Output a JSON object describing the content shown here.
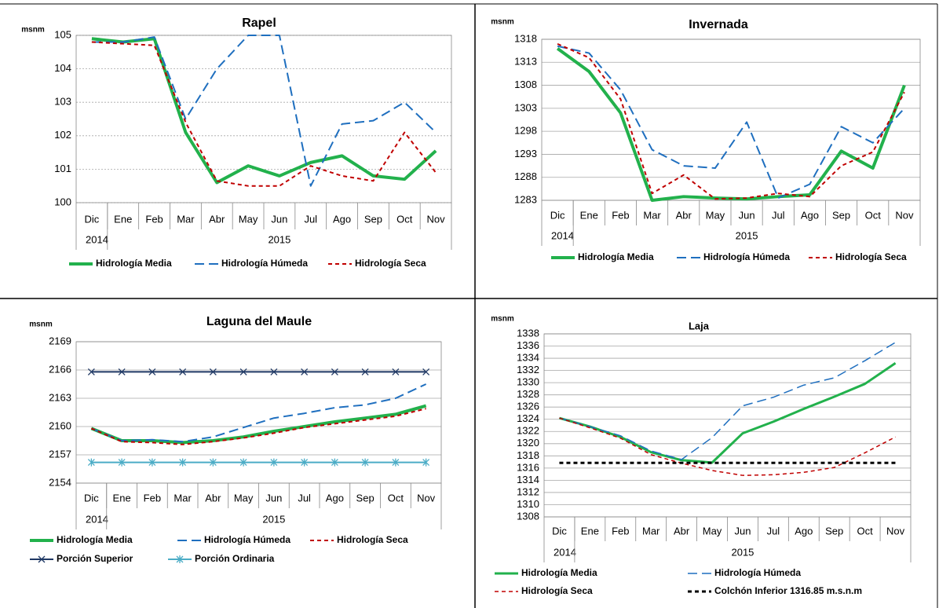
{
  "chart_data": [
    {
      "type": "line",
      "title": "Rapel",
      "y_label": "msnm",
      "categories": [
        "Dic",
        "Ene",
        "Feb",
        "Mar",
        "Abr",
        "May",
        "Jun",
        "Jul",
        "Ago",
        "Sep",
        "Oct",
        "Nov"
      ],
      "x_groups": [
        {
          "label": "2014",
          "count": 1
        },
        {
          "label": "2015",
          "count": 11
        }
      ],
      "ylim": [
        100,
        105
      ],
      "yticks": [
        100,
        101,
        102,
        103,
        104,
        105
      ],
      "grid": true,
      "grid_dash": true,
      "series": [
        {
          "name": "Hidrología Media",
          "color": "#22b14c",
          "dash": "solid",
          "width": 4,
          "values": [
            104.9,
            104.8,
            104.9,
            102.1,
            100.6,
            101.1,
            100.8,
            101.2,
            101.4,
            100.8,
            100.7,
            101.55
          ]
        },
        {
          "name": "Hidrología Húmeda",
          "color": "#1f6fbf",
          "dash": "long",
          "width": 2,
          "values": [
            104.8,
            104.8,
            104.95,
            102.5,
            104.0,
            105.0,
            105.0,
            100.5,
            102.35,
            102.45,
            103.0,
            102.1
          ]
        },
        {
          "name": "Hidrología Seca",
          "color": "#c00000",
          "dash": "short",
          "width": 2,
          "values": [
            104.8,
            104.75,
            104.7,
            102.4,
            100.65,
            100.5,
            100.5,
            101.1,
            100.8,
            100.65,
            102.1,
            100.9
          ]
        }
      ]
    },
    {
      "type": "line",
      "title": "Invernada",
      "y_label": "msnm",
      "categories": [
        "Dic",
        "Ene",
        "Feb",
        "Mar",
        "Abr",
        "May",
        "Jun",
        "Jul",
        "Ago",
        "Sep",
        "Oct",
        "Nov"
      ],
      "x_groups": [
        {
          "label": "2014",
          "count": 1
        },
        {
          "label": "2015",
          "count": 11
        }
      ],
      "ylim": [
        1283,
        1318
      ],
      "yticks": [
        1283,
        1288,
        1293,
        1298,
        1303,
        1308,
        1313,
        1318
      ],
      "grid": true,
      "grid_dash": false,
      "series": [
        {
          "name": "Hidrología Media",
          "color": "#22b14c",
          "dash": "solid",
          "width": 4,
          "values": [
            1316,
            1311,
            1302,
            1283,
            1283.8,
            1283.5,
            1283.3,
            1283.8,
            1284.2,
            1293.7,
            1290,
            1308
          ]
        },
        {
          "name": "Hidrología Húmeda",
          "color": "#1f6fbf",
          "dash": "long",
          "width": 2,
          "values": [
            1316.5,
            1315,
            1307,
            1294,
            1290.5,
            1290,
            1300,
            1283.5,
            1286.5,
            1299,
            1295.5,
            1303
          ]
        },
        {
          "name": "Hidrología Seca",
          "color": "#c00000",
          "dash": "short",
          "width": 2,
          "values": [
            1317,
            1314,
            1305,
            1284.5,
            1288.5,
            1283.3,
            1283.5,
            1284.5,
            1283.8,
            1290.5,
            1293.5,
            1306.5
          ]
        }
      ]
    },
    {
      "type": "line",
      "title": "Laguna del Maule",
      "y_label": "msnm",
      "categories": [
        "Dic",
        "Ene",
        "Feb",
        "Mar",
        "Abr",
        "May",
        "Jun",
        "Jul",
        "Ago",
        "Sep",
        "Oct",
        "Nov"
      ],
      "x_groups": [
        {
          "label": "2014",
          "count": 1
        },
        {
          "label": "2015",
          "count": 11
        }
      ],
      "ylim": [
        2154,
        2169
      ],
      "yticks": [
        2154,
        2157,
        2160,
        2163,
        2166,
        2169
      ],
      "grid": true,
      "grid_dash": false,
      "series": [
        {
          "name": "Hidrología Media",
          "color": "#22b14c",
          "dash": "solid",
          "width": 4,
          "values": [
            2159.8,
            2158.5,
            2158.5,
            2158.3,
            2158.5,
            2158.9,
            2159.5,
            2160.0,
            2160.5,
            2160.9,
            2161.3,
            2162.2
          ]
        },
        {
          "name": "Hidrología Húmeda",
          "color": "#1f6fbf",
          "dash": "long",
          "width": 2,
          "values": [
            2159.8,
            2158.5,
            2158.6,
            2158.4,
            2158.9,
            2159.9,
            2160.9,
            2161.4,
            2162.0,
            2162.3,
            2163.0,
            2164.5
          ]
        },
        {
          "name": "Hidrología Seca",
          "color": "#c00000",
          "dash": "short",
          "width": 2,
          "values": [
            2159.8,
            2158.4,
            2158.3,
            2158.1,
            2158.4,
            2158.8,
            2159.3,
            2159.9,
            2160.3,
            2160.7,
            2161.1,
            2161.9
          ]
        },
        {
          "name": "Porción Superior",
          "color": "#1f3864",
          "dash": "solid",
          "width": 2,
          "marker": "x",
          "values": [
            2165.8,
            2165.8,
            2165.8,
            2165.8,
            2165.8,
            2165.8,
            2165.8,
            2165.8,
            2165.8,
            2165.8,
            2165.8,
            2165.8
          ]
        },
        {
          "name": "Porción Ordinaria",
          "color": "#4bacc6",
          "dash": "solid",
          "width": 2,
          "marker": "asterisk",
          "values": [
            2156.2,
            2156.2,
            2156.2,
            2156.2,
            2156.2,
            2156.2,
            2156.2,
            2156.2,
            2156.2,
            2156.2,
            2156.2,
            2156.2
          ]
        }
      ]
    },
    {
      "type": "line",
      "title": "Laja",
      "y_label": "msnm",
      "categories": [
        "Dic",
        "Ene",
        "Feb",
        "Mar",
        "Abr",
        "May",
        "Jun",
        "Jul",
        "Ago",
        "Sep",
        "Oct",
        "Nov"
      ],
      "x_groups": [
        {
          "label": "2014",
          "count": 1
        },
        {
          "label": "2015",
          "count": 11
        }
      ],
      "ylim": [
        1308,
        1338
      ],
      "yticks": [
        1308,
        1310,
        1312,
        1314,
        1316,
        1318,
        1320,
        1322,
        1324,
        1326,
        1328,
        1330,
        1332,
        1334,
        1336,
        1338
      ],
      "grid": true,
      "grid_dash": false,
      "series": [
        {
          "name": "Hidrología Media",
          "color": "#22b14c",
          "dash": "solid",
          "width": 3,
          "values": [
            1324.2,
            1322.8,
            1321.1,
            1318.6,
            1317.3,
            1316.9,
            1321.7,
            1323.6,
            1325.7,
            1327.7,
            1329.8,
            1333.2
          ]
        },
        {
          "name": "Hidrología Húmeda",
          "color": "#1f6fbf",
          "dash": "long",
          "width": 1.5,
          "values": [
            1324.2,
            1322.8,
            1321.3,
            1318.8,
            1317.4,
            1321.0,
            1326.2,
            1327.6,
            1329.6,
            1330.8,
            1333.6,
            1336.6
          ]
        },
        {
          "name": "Hidrología Seca",
          "color": "#c00000",
          "dash": "short",
          "width": 1.5,
          "values": [
            1324.2,
            1322.6,
            1320.9,
            1318.2,
            1316.8,
            1315.6,
            1314.8,
            1314.9,
            1315.3,
            1316.1,
            1318.5,
            1321.1
          ]
        },
        {
          "name": "Colchón Inferior 1316.85 m.s.n.m",
          "color": "#000000",
          "dash": "short",
          "width": 3,
          "values": [
            1316.85,
            1316.85,
            1316.85,
            1316.85,
            1316.85,
            1316.85,
            1316.85,
            1316.85,
            1316.85,
            1316.85,
            1316.85,
            1316.85
          ]
        }
      ]
    }
  ]
}
